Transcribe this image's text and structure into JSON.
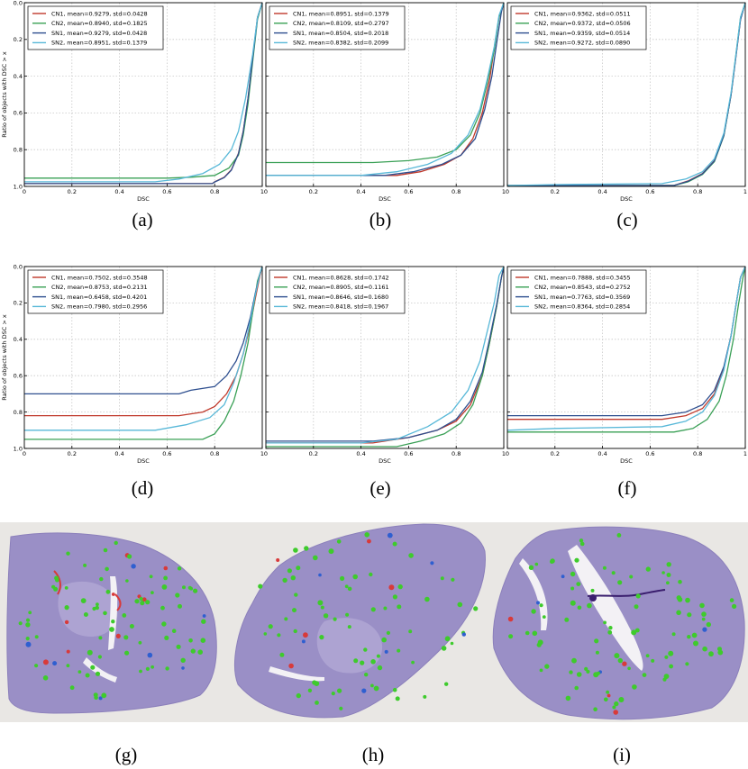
{
  "colors": {
    "CN1": "#c0392b",
    "CN2": "#3aa056",
    "SN1": "#2e4f8f",
    "SN2": "#58b8d8"
  },
  "chart_data": [
    {
      "type": "line",
      "panel": "(a)",
      "xlabel": "DSC",
      "ylabel": "Ratio of objects with DSC > x",
      "xlim": [
        0,
        1
      ],
      "ylim": [
        1.0,
        0.0
      ],
      "xticks": [
        "0",
        "0.2",
        "0.4",
        "0.6",
        "0.8",
        "1"
      ],
      "yticks": [
        "0.0",
        "0.2",
        "0.4",
        "0.6",
        "0.8",
        "1.0"
      ],
      "grid": true,
      "legend": "top-left",
      "series": [
        {
          "name": "CN1, mean=0.9279, std=0.0428",
          "key": "CN1",
          "x": [
            0,
            0.79,
            0.8,
            0.84,
            0.87,
            0.9,
            0.92,
            0.94,
            0.96,
            0.98,
            1.0
          ],
          "y": [
            0.985,
            0.985,
            0.975,
            0.95,
            0.91,
            0.82,
            0.7,
            0.52,
            0.3,
            0.08,
            0.0
          ]
        },
        {
          "name": "CN2, mean=0.8940, std=0.1825",
          "key": "CN2",
          "x": [
            0,
            0.6,
            0.7,
            0.8,
            0.86,
            0.9,
            0.92,
            0.94,
            0.96,
            0.98,
            1.0
          ],
          "y": [
            0.955,
            0.955,
            0.95,
            0.94,
            0.9,
            0.83,
            0.72,
            0.55,
            0.32,
            0.09,
            0.0
          ]
        },
        {
          "name": "SN1, mean=0.9279, std=0.0428",
          "key": "SN1",
          "x": [
            0,
            0.79,
            0.8,
            0.84,
            0.87,
            0.9,
            0.92,
            0.94,
            0.96,
            0.98,
            1.0
          ],
          "y": [
            0.985,
            0.985,
            0.976,
            0.952,
            0.912,
            0.822,
            0.702,
            0.522,
            0.302,
            0.082,
            0.0
          ]
        },
        {
          "name": "SN2, mean=0.8951, std=0.1379",
          "key": "SN2",
          "x": [
            0,
            0.55,
            0.65,
            0.75,
            0.82,
            0.87,
            0.9,
            0.93,
            0.96,
            0.98,
            1.0
          ],
          "y": [
            0.975,
            0.975,
            0.96,
            0.93,
            0.88,
            0.8,
            0.7,
            0.52,
            0.28,
            0.08,
            0.0
          ]
        }
      ]
    },
    {
      "type": "line",
      "panel": "(b)",
      "xlabel": "DSC",
      "ylabel": "",
      "xlim": [
        0,
        1
      ],
      "ylim": [
        1.0,
        0.0
      ],
      "xticks": [
        "0",
        "0.2",
        "0.4",
        "0.6",
        "0.8",
        "1"
      ],
      "yticks": [],
      "grid": true,
      "legend": "top-left",
      "series": [
        {
          "name": "CN1, mean=0.8951, std=0.1379",
          "key": "CN1",
          "x": [
            0,
            0.55,
            0.65,
            0.75,
            0.82,
            0.87,
            0.91,
            0.94,
            0.96,
            0.98,
            1.0
          ],
          "y": [
            0.94,
            0.94,
            0.92,
            0.88,
            0.83,
            0.74,
            0.6,
            0.42,
            0.25,
            0.08,
            0.0
          ]
        },
        {
          "name": "CN2, mean=0.8109, std=0.2797",
          "key": "CN2",
          "x": [
            0,
            0.45,
            0.6,
            0.72,
            0.8,
            0.86,
            0.9,
            0.93,
            0.96,
            0.98,
            1.0
          ],
          "y": [
            0.87,
            0.87,
            0.86,
            0.84,
            0.8,
            0.72,
            0.6,
            0.44,
            0.26,
            0.08,
            0.0
          ]
        },
        {
          "name": "SN1, mean=0.8504, std=0.2018",
          "key": "SN1",
          "x": [
            0,
            0.5,
            0.62,
            0.74,
            0.82,
            0.88,
            0.92,
            0.95,
            0.97,
            0.99,
            1.0
          ],
          "y": [
            0.94,
            0.94,
            0.92,
            0.88,
            0.83,
            0.74,
            0.58,
            0.4,
            0.22,
            0.05,
            0.0
          ]
        },
        {
          "name": "SN2, mean=0.8382, std=0.2099",
          "key": "SN2",
          "x": [
            0,
            0.4,
            0.55,
            0.68,
            0.78,
            0.85,
            0.9,
            0.93,
            0.96,
            0.98,
            1.0
          ],
          "y": [
            0.94,
            0.94,
            0.92,
            0.88,
            0.82,
            0.72,
            0.58,
            0.42,
            0.24,
            0.07,
            0.0
          ]
        }
      ]
    },
    {
      "type": "line",
      "panel": "(c)",
      "xlabel": "DSC",
      "ylabel": "",
      "xlim": [
        0,
        1
      ],
      "ylim": [
        1.0,
        0.0
      ],
      "xticks": [
        "0",
        "0.2",
        "0.4",
        "0.6",
        "0.8",
        "1"
      ],
      "yticks": [],
      "grid": true,
      "legend": "top-left",
      "series": [
        {
          "name": "CN1, mean=0.9362, std=0.0511",
          "key": "CN1",
          "x": [
            0,
            0.7,
            0.76,
            0.82,
            0.87,
            0.91,
            0.94,
            0.96,
            0.98,
            1.0
          ],
          "y": [
            0.995,
            0.995,
            0.97,
            0.93,
            0.86,
            0.72,
            0.5,
            0.3,
            0.09,
            0.0
          ]
        },
        {
          "name": "CN2, mean=0.9372, std=0.0506",
          "key": "CN2",
          "x": [
            0,
            0.7,
            0.76,
            0.82,
            0.87,
            0.91,
            0.94,
            0.96,
            0.98,
            1.0
          ],
          "y": [
            0.995,
            0.995,
            0.975,
            0.935,
            0.865,
            0.725,
            0.5,
            0.29,
            0.08,
            0.0
          ]
        },
        {
          "name": "SN1, mean=0.9359, std=0.0514",
          "key": "SN1",
          "x": [
            0,
            0.7,
            0.76,
            0.82,
            0.87,
            0.91,
            0.94,
            0.96,
            0.98,
            1.0
          ],
          "y": [
            0.995,
            0.995,
            0.972,
            0.932,
            0.862,
            0.722,
            0.502,
            0.302,
            0.092,
            0.0
          ]
        },
        {
          "name": "SN2, mean=0.9272, std=0.0890",
          "key": "SN2",
          "x": [
            0,
            0.2,
            0.65,
            0.75,
            0.82,
            0.87,
            0.91,
            0.94,
            0.96,
            0.98,
            1.0
          ],
          "y": [
            0.995,
            0.99,
            0.985,
            0.96,
            0.92,
            0.85,
            0.71,
            0.49,
            0.29,
            0.08,
            0.0
          ]
        }
      ]
    },
    {
      "type": "line",
      "panel": "(d)",
      "xlabel": "DSC",
      "ylabel": "Ratio of objects with DSC > x",
      "xlim": [
        0,
        1
      ],
      "ylim": [
        1.0,
        0.0
      ],
      "xticks": [
        "0",
        "0.2",
        "0.4",
        "0.6",
        "0.8",
        "1"
      ],
      "yticks": [
        "0.0",
        "0.2",
        "0.4",
        "0.6",
        "0.8",
        "1.0"
      ],
      "grid": true,
      "legend": "top-left",
      "series": [
        {
          "name": "CN1, mean=0.7502, std=0.3548",
          "key": "CN1",
          "x": [
            0,
            0.65,
            0.75,
            0.8,
            0.85,
            0.89,
            0.92,
            0.95,
            0.97,
            0.99,
            1.0
          ],
          "y": [
            0.82,
            0.82,
            0.8,
            0.77,
            0.7,
            0.6,
            0.48,
            0.32,
            0.18,
            0.05,
            0.0
          ]
        },
        {
          "name": "CN2, mean=0.8753, std=0.2131",
          "key": "CN2",
          "x": [
            0,
            0.75,
            0.8,
            0.84,
            0.88,
            0.91,
            0.94,
            0.96,
            0.98,
            1.0
          ],
          "y": [
            0.95,
            0.95,
            0.92,
            0.85,
            0.74,
            0.6,
            0.42,
            0.25,
            0.08,
            0.0
          ]
        },
        {
          "name": "SN1, mean=0.6458, std=0.4201",
          "key": "SN1",
          "x": [
            0,
            0.65,
            0.7,
            0.8,
            0.85,
            0.89,
            0.92,
            0.95,
            0.97,
            0.99,
            1.0
          ],
          "y": [
            0.7,
            0.7,
            0.68,
            0.66,
            0.6,
            0.52,
            0.42,
            0.28,
            0.15,
            0.04,
            0.0
          ]
        },
        {
          "name": "SN2, mean=0.7980, std=0.2956",
          "key": "SN2",
          "x": [
            0,
            0.55,
            0.68,
            0.78,
            0.84,
            0.88,
            0.92,
            0.95,
            0.97,
            0.99,
            1.0
          ],
          "y": [
            0.9,
            0.9,
            0.87,
            0.83,
            0.76,
            0.64,
            0.48,
            0.3,
            0.16,
            0.04,
            0.0
          ]
        }
      ]
    },
    {
      "type": "line",
      "panel": "(e)",
      "xlabel": "DSC",
      "ylabel": "",
      "xlim": [
        0,
        1
      ],
      "ylim": [
        1.0,
        0.0
      ],
      "xticks": [
        "0",
        "0.2",
        "0.4",
        "0.6",
        "0.8",
        "1"
      ],
      "yticks": [],
      "grid": true,
      "legend": "top-left",
      "series": [
        {
          "name": "CN1, mean=0.8628, std=0.1742",
          "key": "CN1",
          "x": [
            0,
            0.45,
            0.6,
            0.72,
            0.8,
            0.86,
            0.91,
            0.94,
            0.97,
            0.99,
            1.0
          ],
          "y": [
            0.97,
            0.97,
            0.94,
            0.9,
            0.85,
            0.76,
            0.6,
            0.42,
            0.22,
            0.06,
            0.0
          ]
        },
        {
          "name": "CN2, mean=0.8905, std=0.1161",
          "key": "CN2",
          "x": [
            0,
            0.55,
            0.65,
            0.75,
            0.82,
            0.87,
            0.91,
            0.94,
            0.97,
            0.99,
            1.0
          ],
          "y": [
            0.99,
            0.99,
            0.96,
            0.92,
            0.86,
            0.76,
            0.6,
            0.42,
            0.22,
            0.06,
            0.0
          ]
        },
        {
          "name": "SN1, mean=0.8646, std=0.1680",
          "key": "SN1",
          "x": [
            0,
            0.45,
            0.6,
            0.72,
            0.8,
            0.86,
            0.91,
            0.94,
            0.97,
            0.99,
            1.0
          ],
          "y": [
            0.96,
            0.96,
            0.94,
            0.9,
            0.84,
            0.74,
            0.58,
            0.4,
            0.21,
            0.06,
            0.0
          ]
        },
        {
          "name": "SN2, mean=0.8418, std=0.1967",
          "key": "SN2",
          "x": [
            0,
            0.4,
            0.55,
            0.68,
            0.78,
            0.85,
            0.9,
            0.93,
            0.96,
            0.98,
            1.0
          ],
          "y": [
            0.97,
            0.97,
            0.95,
            0.88,
            0.8,
            0.68,
            0.52,
            0.36,
            0.2,
            0.05,
            0.0
          ]
        }
      ]
    },
    {
      "type": "line",
      "panel": "(f)",
      "xlabel": "DSC",
      "ylabel": "",
      "xlim": [
        0,
        1
      ],
      "ylim": [
        1.0,
        0.0
      ],
      "xticks": [
        "0",
        "0.2",
        "0.4",
        "0.6",
        "0.8",
        "1"
      ],
      "yticks": [],
      "grid": true,
      "legend": "top-left",
      "series": [
        {
          "name": "CN1, mean=0.7888, std=0.3455",
          "key": "CN1",
          "x": [
            0,
            0.65,
            0.75,
            0.82,
            0.87,
            0.91,
            0.94,
            0.96,
            0.98,
            1.0
          ],
          "y": [
            0.84,
            0.84,
            0.82,
            0.78,
            0.7,
            0.56,
            0.38,
            0.22,
            0.06,
            0.0
          ]
        },
        {
          "name": "CN2, mean=0.8543, std=0.2752",
          "key": "CN2",
          "x": [
            0,
            0.7,
            0.78,
            0.84,
            0.89,
            0.92,
            0.95,
            0.97,
            0.99,
            1.0
          ],
          "y": [
            0.91,
            0.91,
            0.89,
            0.84,
            0.74,
            0.6,
            0.4,
            0.22,
            0.06,
            0.0
          ]
        },
        {
          "name": "SN1, mean=0.7763, std=0.3569",
          "key": "SN1",
          "x": [
            0,
            0.65,
            0.75,
            0.82,
            0.87,
            0.91,
            0.94,
            0.96,
            0.98,
            1.0
          ],
          "y": [
            0.82,
            0.82,
            0.8,
            0.76,
            0.68,
            0.55,
            0.38,
            0.22,
            0.06,
            0.0
          ]
        },
        {
          "name": "SN2, mean=0.8364, std=0.2854",
          "key": "SN2",
          "x": [
            0,
            0.2,
            0.65,
            0.75,
            0.82,
            0.87,
            0.91,
            0.94,
            0.96,
            0.98,
            1.0
          ],
          "y": [
            0.9,
            0.89,
            0.88,
            0.85,
            0.8,
            0.71,
            0.57,
            0.38,
            0.22,
            0.06,
            0.0
          ]
        }
      ]
    }
  ],
  "captions": [
    "(a)",
    "(b)",
    "(c)",
    "(d)",
    "(e)",
    "(f)",
    "(g)",
    "(h)",
    "(i)"
  ],
  "slides": {
    "background": "#e9e7e4",
    "tissue": "#9a8fc6",
    "tissue_dark": "#7f73b2",
    "lumen": "#f3f1f5",
    "detection_main": "#3ecb2c",
    "detection_minor": [
      "#2f5fd0",
      "#d83a3a"
    ]
  }
}
